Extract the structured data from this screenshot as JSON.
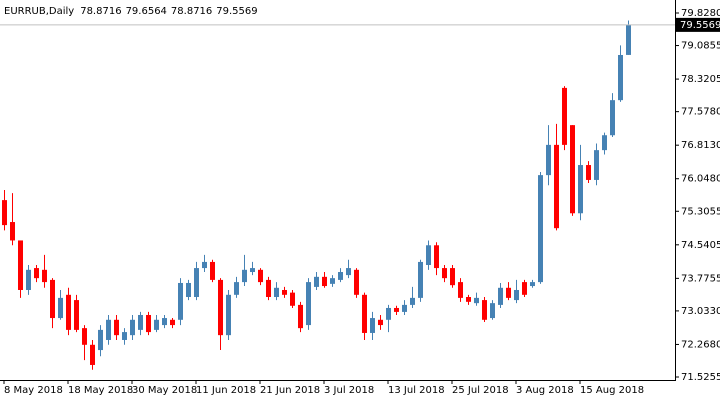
{
  "chart_data": {
    "type": "candlestick",
    "title": "EURRUB,Daily",
    "categories": [
      "8 May 2018",
      null,
      null,
      null,
      null,
      null,
      null,
      null,
      "18 May 2018",
      null,
      null,
      null,
      null,
      null,
      null,
      null,
      "30 May 2018",
      null,
      null,
      null,
      null,
      null,
      null,
      null,
      "11 Jun 2018",
      null,
      null,
      null,
      null,
      null,
      null,
      null,
      "21 Jun 2018",
      null,
      null,
      null,
      null,
      null,
      null,
      null,
      "3 Jul 2018",
      null,
      null,
      null,
      null,
      null,
      null,
      null,
      "13 Jul 2018",
      null,
      null,
      null,
      null,
      null,
      null,
      null,
      "25 Jul 2018",
      null,
      null,
      null,
      null,
      null,
      null,
      null,
      "3 Aug 2018",
      null,
      null,
      null,
      null,
      null,
      null,
      null,
      "15 Aug 2018",
      null,
      null,
      null,
      null,
      null,
      null
    ],
    "open": [
      75.56,
      75.06,
      74.64,
      73.51,
      74.01,
      73.97,
      73.74,
      72.87,
      73.4,
      73.28,
      72.64,
      72.26,
      72.14,
      72.37,
      72.83,
      72.37,
      72.48,
      72.6,
      72.94,
      72.6,
      72.71,
      72.83,
      72.83,
      73.35,
      73.35,
      74.01,
      74.15,
      73.74,
      72.48,
      73.4,
      73.69,
      73.92,
      73.97,
      73.74,
      73.35,
      73.51,
      73.45,
      73.17,
      72.71,
      73.58,
      73.81,
      73.65,
      73.74,
      73.85,
      73.97,
      73.4,
      72.53,
      72.83,
      72.83,
      73.1,
      73.01,
      73.17,
      73.33,
      74.08,
      74.53,
      74.01,
      74.01,
      73.69,
      73.35,
      73.21,
      73.28,
      72.87,
      73.17,
      73.56,
      73.28,
      73.69,
      73.6,
      73.69,
      76.13,
      76.82,
      78.12,
      77.27,
      75.26,
      76.36,
      76.02,
      76.7,
      77.04,
      77.84,
      78.8716
    ],
    "high": [
      75.79,
      75.72,
      74.64,
      74.08,
      74.08,
      74.31,
      73.78,
      73.51,
      73.56,
      73.4,
      72.71,
      72.37,
      72.71,
      72.94,
      72.94,
      72.64,
      72.94,
      73.01,
      73.01,
      72.94,
      72.94,
      72.87,
      73.78,
      73.74,
      74.15,
      74.31,
      74.2,
      73.78,
      73.51,
      73.81,
      74.31,
      74.15,
      74.01,
      73.81,
      73.69,
      73.58,
      73.51,
      73.24,
      73.78,
      73.92,
      73.92,
      73.85,
      74.01,
      74.2,
      74.01,
      73.45,
      73.01,
      72.94,
      73.17,
      73.15,
      73.28,
      73.58,
      74.2,
      74.64,
      74.6,
      74.08,
      74.08,
      73.78,
      73.4,
      73.45,
      73.35,
      73.28,
      73.67,
      73.69,
      73.74,
      73.74,
      73.74,
      76.2,
      77.27,
      77.3,
      78.16,
      77.27,
      76.82,
      76.45,
      76.85,
      77.1,
      78.0,
      79.09,
      79.6564
    ],
    "low": [
      74.87,
      74.53,
      73.33,
      73.4,
      73.69,
      73.56,
      72.64,
      72.83,
      72.48,
      72.55,
      71.91,
      71.69,
      72.0,
      72.26,
      72.37,
      72.26,
      72.37,
      72.48,
      72.48,
      72.55,
      72.64,
      72.64,
      72.71,
      73.28,
      73.28,
      73.92,
      73.69,
      72.14,
      72.37,
      73.33,
      73.6,
      73.85,
      73.62,
      73.28,
      73.28,
      73.33,
      73.1,
      72.55,
      72.6,
      73.51,
      73.56,
      73.58,
      73.69,
      73.78,
      73.33,
      72.37,
      72.37,
      72.6,
      72.55,
      72.94,
      72.94,
      73.1,
      73.24,
      73.97,
      73.85,
      73.69,
      73.56,
      73.24,
      73.17,
      73.15,
      72.78,
      72.83,
      73.1,
      73.28,
      73.21,
      73.35,
      73.56,
      73.65,
      75.9,
      74.87,
      76.7,
      75.2,
      75.1,
      75.95,
      75.9,
      76.6,
      77.0,
      77.8,
      78.8716
    ],
    "close": [
      74.99,
      74.64,
      73.51,
      73.97,
      73.78,
      73.69,
      72.87,
      73.33,
      72.6,
      72.6,
      72.26,
      71.8,
      72.6,
      72.83,
      72.48,
      72.55,
      72.83,
      72.94,
      72.55,
      72.83,
      72.87,
      72.71,
      73.67,
      73.67,
      74.01,
      74.15,
      73.74,
      72.48,
      73.4,
      73.69,
      73.97,
      74.01,
      73.69,
      73.35,
      73.56,
      73.4,
      73.15,
      72.64,
      73.69,
      73.81,
      73.6,
      73.78,
      73.92,
      74.01,
      73.4,
      72.53,
      72.87,
      72.71,
      73.1,
      73.01,
      73.17,
      73.33,
      74.15,
      74.53,
      74.01,
      73.78,
      73.62,
      73.33,
      73.24,
      73.33,
      72.83,
      73.21,
      73.56,
      73.33,
      73.51,
      73.4,
      73.69,
      76.13,
      76.82,
      74.92,
      76.82,
      75.26,
      76.36,
      76.02,
      76.7,
      77.04,
      77.84,
      78.87,
      79.5569
    ],
    "up_color": "#4682b4",
    "down_color": "#ff0000",
    "ylim": [
      71.457,
      80.056
    ],
    "yticks": [
      {
        "value": 79.828,
        "label": "79.8280"
      },
      79.0855,
      78.3205,
      {
        "value": 77.578,
        "label": "77.5780"
      },
      {
        "value": 76.813,
        "label": "76.8130"
      },
      {
        "value": 76.048,
        "label": "76.0480"
      },
      75.3055,
      74.5405,
      73.7755,
      {
        "value": 73.033,
        "label": "73.0330"
      },
      {
        "value": 72.268,
        "label": "72.2680"
      },
      71.5255
    ],
    "grid": false
  }
}
